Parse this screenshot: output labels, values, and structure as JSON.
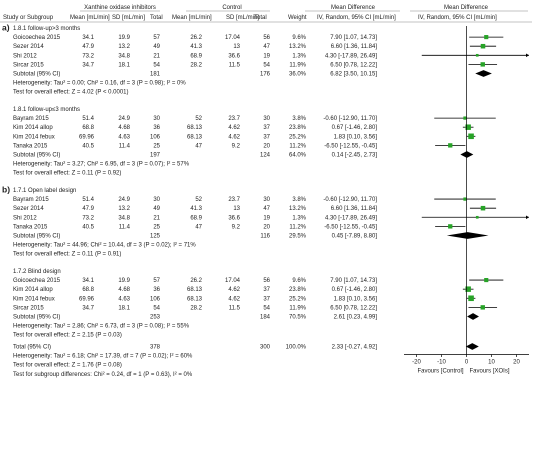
{
  "headers": {
    "group_intervention": "Xanthine oxidase inhibitors",
    "group_control": "Control",
    "study": "Study or Subgroup",
    "mean": "Mean [mL/min]",
    "sd": "SD [mL/min]",
    "total": "Total",
    "weight": "Weight",
    "md_label": "Mean Difference",
    "md_sub": "IV, Random, 95% CI [mL/min]",
    "plot_label": "Mean Difference",
    "plot_sub": "IV, Random, 95% CI [mL/min]"
  },
  "panels": [
    {
      "letter": "a)",
      "subgroups": [
        {
          "title": "1.8.1 follow-up>3 months",
          "studies": [
            {
              "name": "Goicoechea 2015",
              "m1": "34.1",
              "sd1": "19.9",
              "n1": "57",
              "m2": "26.2",
              "sd2": "17.04",
              "n2": "56",
              "weight": "9.6%",
              "ci_text": "7.90 [1.07, 14.73]",
              "md": 7.9,
              "lo": 1.07,
              "hi": 14.73
            },
            {
              "name": "Sezer 2014",
              "m1": "47.9",
              "sd1": "13.2",
              "n1": "49",
              "m2": "41.3",
              "sd2": "13",
              "n2": "47",
              "weight": "13.2%",
              "ci_text": "6.60 [1.36, 11.84]",
              "md": 6.6,
              "lo": 1.36,
              "hi": 11.84
            },
            {
              "name": "Shi 2012",
              "m1": "73.2",
              "sd1": "34.8",
              "n1": "21",
              "m2": "68.9",
              "sd2": "36.6",
              "n2": "19",
              "weight": "1.3%",
              "ci_text": "4.30 [-17.89, 26.49]",
              "md": 4.3,
              "lo": -17.89,
              "hi": 26.49
            },
            {
              "name": "Sircar 2015",
              "m1": "34.7",
              "sd1": "18.1",
              "n1": "54",
              "m2": "28.2",
              "sd2": "11.5",
              "n2": "54",
              "weight": "11.9%",
              "ci_text": "6.50 [0.78, 12.22]",
              "md": 6.5,
              "lo": 0.78,
              "hi": 12.22
            }
          ],
          "subtotal": {
            "label": "Subtotal (95% CI)",
            "n1": "181",
            "n2": "176",
            "weight": "36.0%",
            "ci_text": "6.82 [3.50, 10.15]",
            "md": 6.82,
            "lo": 3.5,
            "hi": 10.15
          },
          "het": "Heterogeneity: Tau² = 0.00; Chi² = 0.16, df = 3 (P = 0.98); I² = 0%",
          "overall": "Test for overall effect: Z = 4.02 (P < 0.0001)"
        },
        {
          "title": "1.8.1 follow-up≤3 months",
          "studies": [
            {
              "name": "Bayram 2015",
              "m1": "51.4",
              "sd1": "24.9",
              "n1": "30",
              "m2": "52",
              "sd2": "23.7",
              "n2": "30",
              "weight": "3.8%",
              "ci_text": "-0.60 [-12.90, 11.70]",
              "md": -0.6,
              "lo": -12.9,
              "hi": 11.7
            },
            {
              "name": "Kim 2014 allop",
              "m1": "68.8",
              "sd1": "4.68",
              "n1": "36",
              "m2": "68.13",
              "sd2": "4.62",
              "n2": "37",
              "weight": "23.8%",
              "ci_text": "0.67 [-1.46, 2.80]",
              "md": 0.67,
              "lo": -1.46,
              "hi": 2.8
            },
            {
              "name": "Kim 2014 febux",
              "m1": "69.96",
              "sd1": "4.63",
              "n1": "106",
              "m2": "68.13",
              "sd2": "4.62",
              "n2": "37",
              "weight": "25.2%",
              "ci_text": "1.83 [0.10, 3.56]",
              "md": 1.83,
              "lo": 0.1,
              "hi": 3.56
            },
            {
              "name": "Tanaka 2015",
              "m1": "40.5",
              "sd1": "11.4",
              "n1": "25",
              "m2": "47",
              "sd2": "9.2",
              "n2": "20",
              "weight": "11.2%",
              "ci_text": "-6.50 [-12.55, -0.45]",
              "md": -6.5,
              "lo": -12.55,
              "hi": -0.45
            }
          ],
          "subtotal": {
            "label": "Subtotal (95% CI)",
            "n1": "197",
            "n2": "124",
            "weight": "64.0%",
            "ci_text": "0.14 [-2.45, 2.73]",
            "md": 0.14,
            "lo": -2.45,
            "hi": 2.73
          },
          "het": "Heterogeneity: Tau² = 3.27; Chi² = 6.95, df = 3 (P = 0.07); I² = 57%",
          "overall": "Test for overall effect: Z = 0.11 (P = 0.92)"
        }
      ]
    },
    {
      "letter": "b)",
      "subgroups": [
        {
          "title": "1.7.1 Open label design",
          "studies": [
            {
              "name": "Bayram 2015",
              "m1": "51.4",
              "sd1": "24.9",
              "n1": "30",
              "m2": "52",
              "sd2": "23.7",
              "n2": "30",
              "weight": "3.8%",
              "ci_text": "-0.60 [-12.90, 11.70]",
              "md": -0.6,
              "lo": -12.9,
              "hi": 11.7
            },
            {
              "name": "Sezer 2014",
              "m1": "47.9",
              "sd1": "13.2",
              "n1": "49",
              "m2": "41.3",
              "sd2": "13",
              "n2": "47",
              "weight": "13.2%",
              "ci_text": "6.60 [1.36, 11.84]",
              "md": 6.6,
              "lo": 1.36,
              "hi": 11.84
            },
            {
              "name": "Shi 2012",
              "m1": "73.2",
              "sd1": "34.8",
              "n1": "21",
              "m2": "68.9",
              "sd2": "36.6",
              "n2": "19",
              "weight": "1.3%",
              "ci_text": "4.30 [-17.89, 26.49]",
              "md": 4.3,
              "lo": -17.89,
              "hi": 26.49
            },
            {
              "name": "Tanaka 2015",
              "m1": "40.5",
              "sd1": "11.4",
              "n1": "25",
              "m2": "47",
              "sd2": "9.2",
              "n2": "20",
              "weight": "11.2%",
              "ci_text": "-6.50 [-12.55, -0.45]",
              "md": -6.5,
              "lo": -12.55,
              "hi": -0.45
            }
          ],
          "subtotal": {
            "label": "Subtotal (95% CI)",
            "n1": "125",
            "n2": "116",
            "weight": "29.5%",
            "ci_text": "0.45 [-7.89, 8.80]",
            "md": 0.45,
            "lo": -7.89,
            "hi": 8.8
          },
          "het": "Heterogeneity: Tau² = 44.96; Chi² = 10.44, df = 3 (P = 0.02); I² = 71%",
          "overall": "Test for overall effect: Z = 0.11 (P = 0.91)"
        },
        {
          "title": "1.7.2 Blind design",
          "studies": [
            {
              "name": "Goicoechea 2015",
              "m1": "34.1",
              "sd1": "19.9",
              "n1": "57",
              "m2": "26.2",
              "sd2": "17.04",
              "n2": "56",
              "weight": "9.6%",
              "ci_text": "7.90 [1.07, 14.73]",
              "md": 7.9,
              "lo": 1.07,
              "hi": 14.73
            },
            {
              "name": "Kim 2014 allop",
              "m1": "68.8",
              "sd1": "4.68",
              "n1": "36",
              "m2": "68.13",
              "sd2": "4.62",
              "n2": "37",
              "weight": "23.8%",
              "ci_text": "0.67 [-1.46, 2.80]",
              "md": 0.67,
              "lo": -1.46,
              "hi": 2.8
            },
            {
              "name": "Kim 2014 febux",
              "m1": "69.96",
              "sd1": "4.63",
              "n1": "106",
              "m2": "68.13",
              "sd2": "4.62",
              "n2": "37",
              "weight": "25.2%",
              "ci_text": "1.83 [0.10, 3.56]",
              "md": 1.83,
              "lo": 0.1,
              "hi": 3.56
            },
            {
              "name": "Sircar 2015",
              "m1": "34.7",
              "sd1": "18.1",
              "n1": "54",
              "m2": "28.2",
              "sd2": "11.5",
              "n2": "54",
              "weight": "11.9%",
              "ci_text": "6.50 [0.78, 12.22]",
              "md": 6.5,
              "lo": 0.78,
              "hi": 12.22
            }
          ],
          "subtotal": {
            "label": "Subtotal (95% CI)",
            "n1": "253",
            "n2": "184",
            "weight": "70.5%",
            "ci_text": "2.61 [0.23, 4.99]",
            "md": 2.61,
            "lo": 0.23,
            "hi": 4.99
          },
          "het": "Heterogeneity: Tau² = 2.86; Chi² = 6.73, df = 3 (P = 0.08); I² = 55%",
          "overall": "Test for overall effect: Z = 2.15 (P = 0.03)"
        }
      ]
    }
  ],
  "total": {
    "label": "Total (95% CI)",
    "n1": "378",
    "n2": "300",
    "weight": "100.0%",
    "ci_text": "2.33 [-0.27, 4.92]",
    "md": 2.33,
    "lo": -0.27,
    "hi": 4.92
  },
  "footer": {
    "het": "Heterogeneity: Tau² = 6.18; Chi² = 17.39, df = 7 (P = 0.02); I² = 60%",
    "overall": "Test for overall effect: Z = 1.76 (P = 0.08)",
    "subgroup": "Test for subgroup differences: Chi² = 0.24, df = 1 (P = 0.63), I² = 0%"
  },
  "axis": {
    "ticks": [
      "-20",
      "-10",
      "0",
      "10",
      "20"
    ],
    "xlim": [
      -25,
      25
    ],
    "favours_left": "Favours [Control]",
    "favours_right": "Favours [XOIs]"
  },
  "colors": {
    "square": "#27a327",
    "diamond": "#000000",
    "line": "#000000",
    "header_line": "#888888"
  }
}
